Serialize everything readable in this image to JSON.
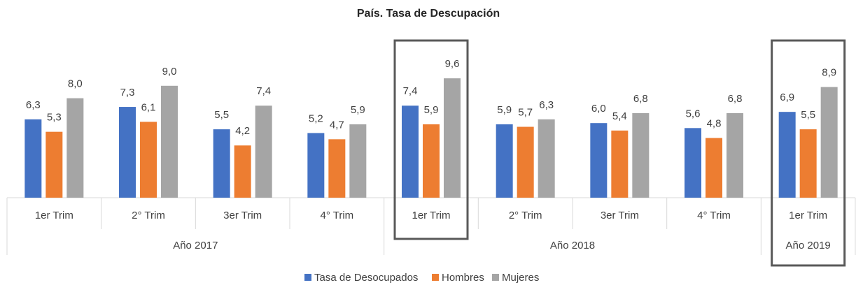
{
  "chart_data": {
    "type": "bar",
    "title": "País. Tasa de Descupación",
    "categories": [
      "1er Trim",
      "2° Trim",
      "3er Trim",
      "4° Trim",
      "1er Trim",
      "2° Trim",
      "3er Trim",
      "4° Trim",
      "1er Trim"
    ],
    "category_groups": [
      "Año 2017",
      "Año 2017",
      "Año 2017",
      "Año 2017",
      "Año 2018",
      "Año 2018",
      "Año 2018",
      "Año 2018",
      "Año 2019"
    ],
    "highlighted": [
      false,
      false,
      false,
      false,
      true,
      false,
      false,
      false,
      true
    ],
    "series": [
      {
        "name": "Tasa de Desocupados",
        "color": "#4472c4",
        "values": [
          6.3,
          7.3,
          5.5,
          5.2,
          7.4,
          5.9,
          6.0,
          5.6,
          6.9
        ],
        "value_labels": [
          "6,3",
          "7,3",
          "5,5",
          "5,2",
          "7,4",
          "5,9",
          "6,0",
          "5,6",
          "6,9"
        ]
      },
      {
        "name": "Hombres",
        "color": "#ed7d31",
        "values": [
          5.3,
          6.1,
          4.2,
          4.7,
          5.9,
          5.7,
          5.4,
          4.8,
          5.5
        ],
        "value_labels": [
          "5,3",
          "6,1",
          "4,2",
          "4,7",
          "5,9",
          "5,7",
          "5,4",
          "4,8",
          "5,5"
        ]
      },
      {
        "name": "Mujeres",
        "color": "#a5a5a5",
        "values": [
          8.0,
          9.0,
          7.4,
          5.9,
          9.6,
          6.3,
          6.8,
          6.8,
          8.9
        ],
        "value_labels": [
          "8,0",
          "9,0",
          "7,4",
          "5,9",
          "9,6",
          "6,3",
          "6,8",
          "6,8",
          "8,9"
        ]
      }
    ],
    "legend": "bottom"
  }
}
